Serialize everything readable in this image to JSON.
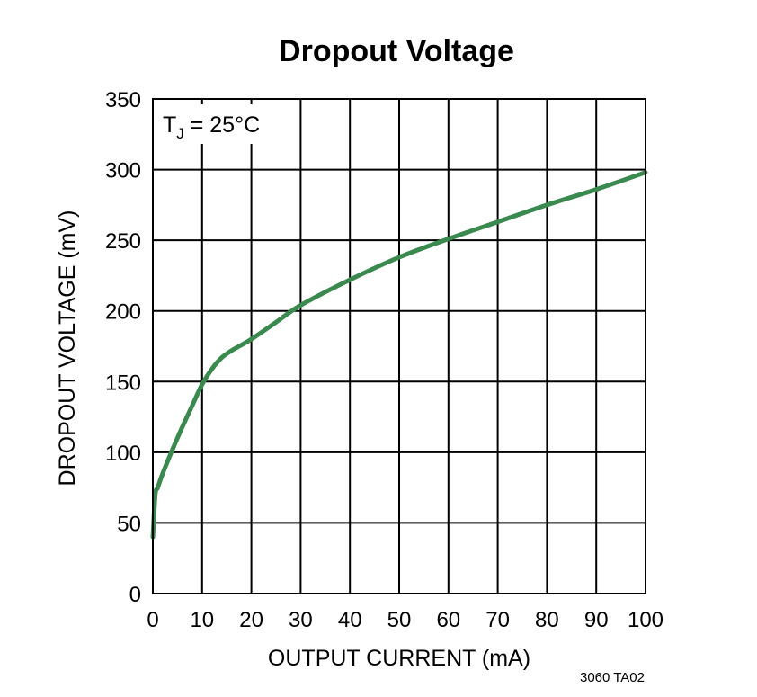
{
  "chart_data": {
    "type": "line",
    "title": "Dropout Voltage",
    "xlabel": "OUTPUT CURRENT (mA)",
    "ylabel": "DROPOUT VOLTAGE (mV)",
    "xlim": [
      0,
      100
    ],
    "ylim": [
      0,
      350
    ],
    "x_ticks": [
      0,
      10,
      20,
      30,
      40,
      50,
      60,
      70,
      80,
      90,
      100
    ],
    "y_ticks": [
      0,
      50,
      100,
      150,
      200,
      250,
      300,
      350
    ],
    "grid": true,
    "annotation": {
      "main": "T",
      "sub": "J",
      "rest": " = 25°C"
    },
    "figure_code": "3060 TA02",
    "line_color": "#3a8a4f",
    "series": [
      {
        "x": [
          0,
          0.5,
          1,
          2,
          4,
          6,
          8,
          10,
          12,
          14,
          16,
          20,
          25,
          30,
          40,
          50,
          60,
          70,
          80,
          90,
          100
        ],
        "y": [
          40,
          70,
          75,
          85,
          102,
          118,
          133,
          148,
          159,
          167,
          172,
          180,
          192,
          204,
          222,
          238,
          251,
          263,
          275,
          286,
          298
        ]
      }
    ]
  }
}
